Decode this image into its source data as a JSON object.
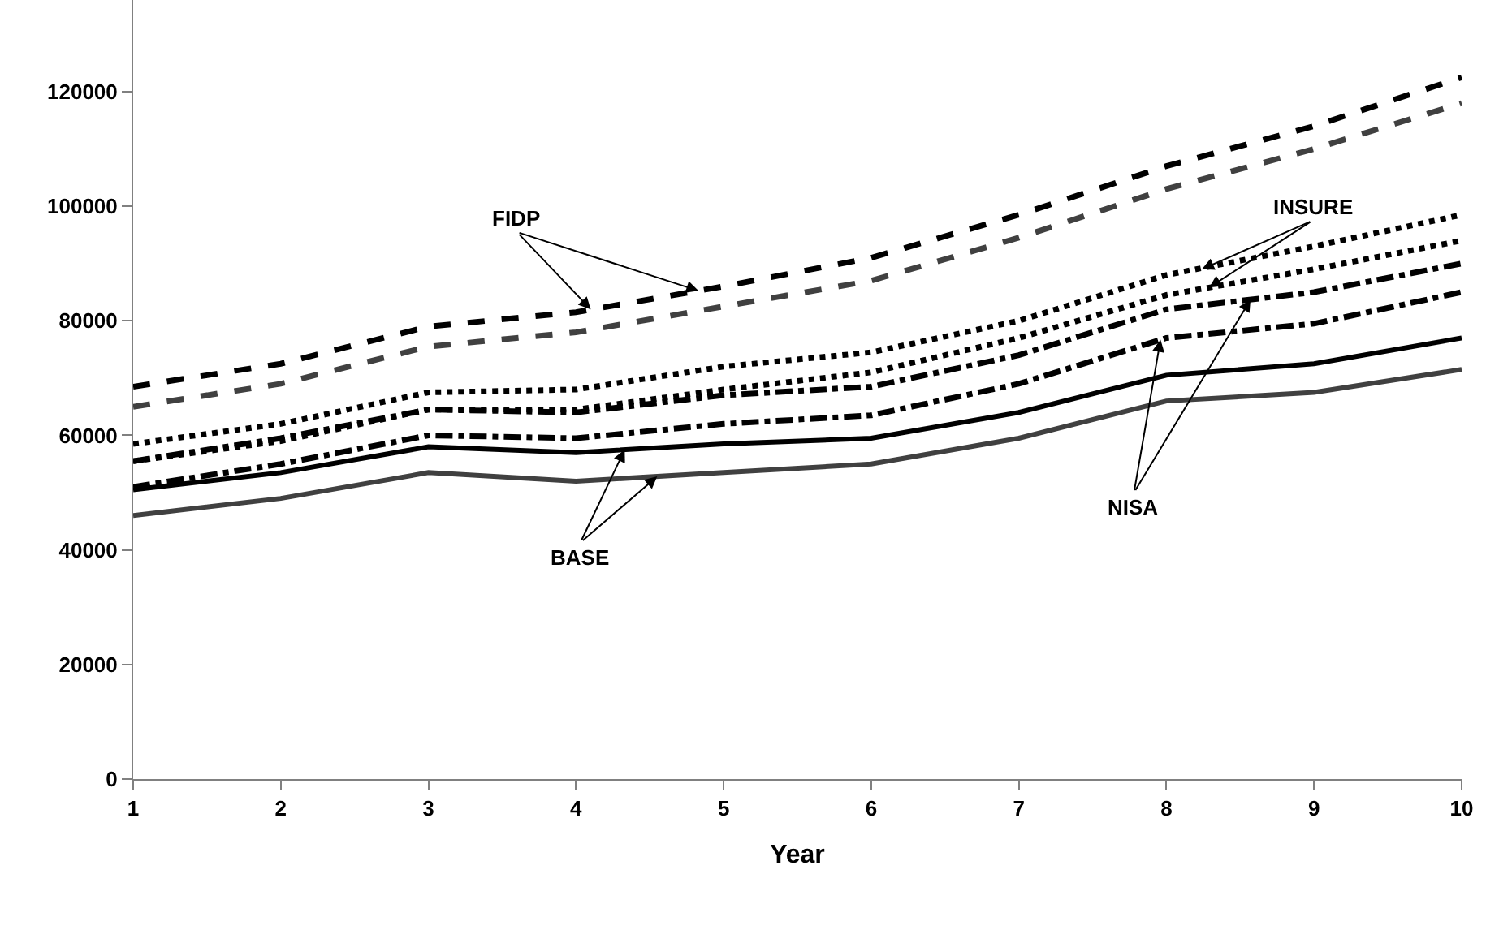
{
  "chart_data": {
    "type": "line",
    "xlabel": "Year",
    "x": [
      1,
      2,
      3,
      4,
      5,
      6,
      7,
      8,
      9,
      10
    ],
    "xlim": [
      1,
      10
    ],
    "xticks": [
      1,
      2,
      3,
      4,
      5,
      6,
      7,
      8,
      9,
      10
    ],
    "ylim": [
      0,
      136000
    ],
    "yticks": [
      0,
      20000,
      40000,
      60000,
      80000,
      100000,
      120000
    ],
    "marker": "none",
    "series": [
      {
        "color": "#000000",
        "line_style": "dashed",
        "values": [
          68500,
          72500,
          79000,
          81500,
          86000,
          91000,
          98500,
          107000,
          114000,
          122500
        ]
      },
      {
        "color": "#404040",
        "line_style": "dashed",
        "values": [
          65000,
          69000,
          75500,
          78000,
          82500,
          87000,
          94500,
          103000,
          110000,
          118000
        ]
      },
      {
        "color": "#000000",
        "line_style": "dotted",
        "values": [
          58500,
          62000,
          67500,
          68000,
          72000,
          74500,
          80000,
          88000,
          93000,
          98500
        ]
      },
      {
        "color": "#000000",
        "line_style": "dotted",
        "values": [
          55500,
          59000,
          64500,
          64500,
          68000,
          71000,
          77000,
          84500,
          89000,
          94000
        ]
      },
      {
        "color": "#000000",
        "line_style": "dashdot",
        "values": [
          55500,
          59500,
          64500,
          64000,
          67000,
          68500,
          74000,
          82000,
          85000,
          90000
        ]
      },
      {
        "color": "#000000",
        "line_style": "dashdot",
        "values": [
          51000,
          55000,
          60000,
          59500,
          62000,
          63500,
          69000,
          77000,
          79500,
          85000
        ]
      },
      {
        "color": "#000000",
        "line_style": "solid",
        "values": [
          50500,
          53500,
          58000,
          57000,
          58500,
          59500,
          64000,
          70500,
          72500,
          77000
        ]
      },
      {
        "color": "#404040",
        "line_style": "solid",
        "values": [
          46000,
          49000,
          53500,
          52000,
          53500,
          55000,
          59500,
          66000,
          67500,
          71500
        ]
      }
    ],
    "annotations": [
      {
        "text": "FIDP",
        "x": 4.1,
        "y": 82000
      },
      {
        "text": "INSURE",
        "x": 8.24,
        "y": 89000
      },
      {
        "text": "NISA",
        "x": 7.96,
        "y": 76700
      },
      {
        "text": "BASE",
        "x": 4.33,
        "y": 57500
      }
    ]
  }
}
